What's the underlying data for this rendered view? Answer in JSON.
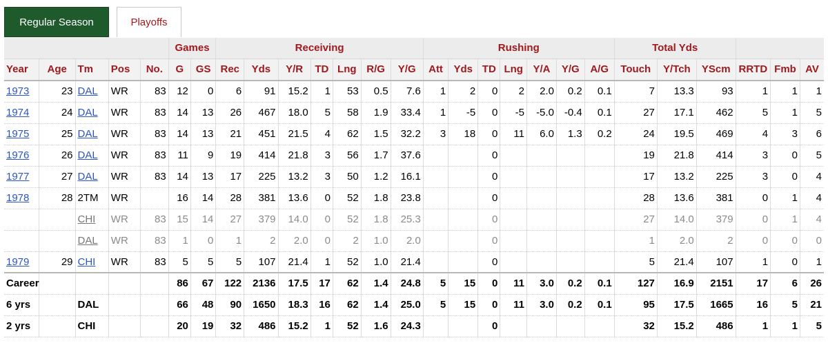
{
  "tabs": {
    "regular": "Regular Season",
    "playoffs": "Playoffs"
  },
  "groups": {
    "games": "Games",
    "receiving": "Receiving",
    "rushing": "Rushing",
    "total": "Total Yds"
  },
  "columns": [
    "Year",
    "Age",
    "Tm",
    "Pos",
    "No.",
    "G",
    "GS",
    "Rec",
    "Yds",
    "Y/R",
    "TD",
    "Lng",
    "R/G",
    "Y/G",
    "Att",
    "Yds",
    "TD",
    "Lng",
    "Y/A",
    "Y/G",
    "A/G",
    "Touch",
    "Y/Tch",
    "YScm",
    "RRTD",
    "Fmb",
    "AV"
  ],
  "rows": [
    [
      "1973",
      "23",
      "DAL",
      "WR",
      "83",
      "12",
      "0",
      "6",
      "91",
      "15.2",
      "1",
      "53",
      "0.5",
      "7.6",
      "1",
      "2",
      "0",
      "2",
      "2.0",
      "0.2",
      "0.1",
      "7",
      "13.3",
      "93",
      "1",
      "1",
      "1"
    ],
    [
      "1974",
      "24",
      "DAL",
      "WR",
      "83",
      "14",
      "13",
      "26",
      "467",
      "18.0",
      "5",
      "58",
      "1.9",
      "33.4",
      "1",
      "-5",
      "0",
      "-5",
      "-5.0",
      "-0.4",
      "0.1",
      "27",
      "17.1",
      "462",
      "5",
      "1",
      "5"
    ],
    [
      "1975",
      "25",
      "DAL",
      "WR",
      "83",
      "14",
      "13",
      "21",
      "451",
      "21.5",
      "4",
      "62",
      "1.5",
      "32.2",
      "3",
      "18",
      "0",
      "11",
      "6.0",
      "1.3",
      "0.2",
      "24",
      "19.5",
      "469",
      "4",
      "3",
      "6"
    ],
    [
      "1976",
      "26",
      "DAL",
      "WR",
      "83",
      "11",
      "9",
      "19",
      "414",
      "21.8",
      "3",
      "56",
      "1.7",
      "37.6",
      "",
      "",
      "0",
      "",
      "",
      "",
      "",
      "19",
      "21.8",
      "414",
      "3",
      "0",
      "5"
    ],
    [
      "1977",
      "27",
      "DAL",
      "WR",
      "83",
      "14",
      "13",
      "17",
      "225",
      "13.2",
      "3",
      "50",
      "1.2",
      "16.1",
      "",
      "",
      "0",
      "",
      "",
      "",
      "",
      "17",
      "13.2",
      "225",
      "3",
      "0",
      "4"
    ],
    [
      "1978",
      "28",
      "2TM",
      "WR",
      "",
      "16",
      "14",
      "28",
      "381",
      "13.6",
      "0",
      "52",
      "1.8",
      "23.8",
      "",
      "",
      "0",
      "",
      "",
      "",
      "",
      "28",
      "13.6",
      "381",
      "0",
      "1",
      "4"
    ],
    [
      "",
      "",
      "CHI",
      "WR",
      "83",
      "15",
      "14",
      "27",
      "379",
      "14.0",
      "0",
      "52",
      "1.8",
      "25.3",
      "",
      "",
      "0",
      "",
      "",
      "",
      "",
      "27",
      "14.0",
      "379",
      "0",
      "1",
      "4"
    ],
    [
      "",
      "",
      "DAL",
      "WR",
      "83",
      "1",
      "0",
      "1",
      "2",
      "2.0",
      "0",
      "2",
      "1.0",
      "2.0",
      "",
      "",
      "0",
      "",
      "",
      "",
      "",
      "1",
      "2.0",
      "2",
      "0",
      "0",
      "0"
    ],
    [
      "1979",
      "29",
      "CHI",
      "WR",
      "83",
      "5",
      "5",
      "5",
      "107",
      "21.4",
      "1",
      "52",
      "1.0",
      "21.4",
      "",
      "",
      "0",
      "",
      "",
      "",
      "",
      "5",
      "21.4",
      "107",
      "1",
      "0",
      "1"
    ]
  ],
  "totals": [
    [
      "Career",
      "",
      "",
      "",
      "",
      "86",
      "67",
      "122",
      "2136",
      "17.5",
      "17",
      "62",
      "1.4",
      "24.8",
      "5",
      "15",
      "0",
      "11",
      "3.0",
      "0.2",
      "0.1",
      "127",
      "16.9",
      "2151",
      "17",
      "6",
      "26"
    ],
    [
      "6 yrs",
      "",
      "DAL",
      "",
      "",
      "66",
      "48",
      "90",
      "1650",
      "18.3",
      "16",
      "62",
      "1.4",
      "25.0",
      "5",
      "15",
      "0",
      "11",
      "3.0",
      "0.2",
      "0.1",
      "95",
      "17.5",
      "1665",
      "16",
      "5",
      "21"
    ],
    [
      "2 yrs",
      "",
      "CHI",
      "",
      "",
      "20",
      "19",
      "32",
      "486",
      "15.2",
      "1",
      "52",
      "1.6",
      "24.3",
      "",
      "",
      "0",
      "",
      "",
      "",
      "",
      "32",
      "15.2",
      "486",
      "1",
      "1",
      "5"
    ]
  ]
}
